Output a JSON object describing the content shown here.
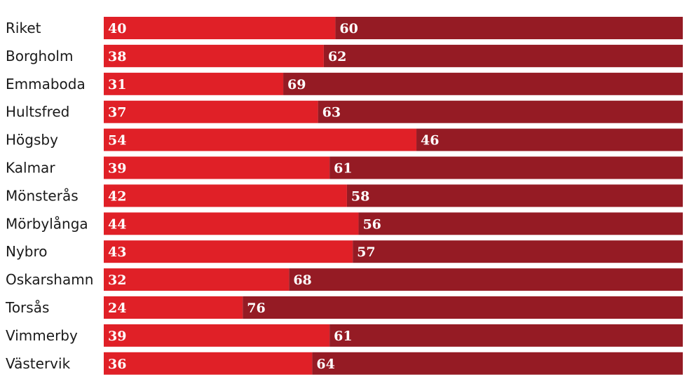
{
  "chart_data": {
    "type": "bar",
    "stacked": true,
    "orientation": "horizontal",
    "categories": [
      "Riket",
      "Borgholm",
      "Emmaboda",
      "Hultsfred",
      "Högsby",
      "Kalmar",
      "Mönsterås",
      "Mörbylånga",
      "Nybro",
      "Oskarshamn",
      "Torsås",
      "Vimmerby",
      "Västervik"
    ],
    "series": [
      {
        "values": [
          40,
          38,
          31,
          37,
          54,
          39,
          42,
          44,
          43,
          32,
          24,
          39,
          36
        ],
        "color": "#e02027"
      },
      {
        "values": [
          60,
          62,
          69,
          63,
          46,
          61,
          58,
          56,
          57,
          68,
          76,
          61,
          64
        ],
        "color": "#951b24"
      }
    ],
    "xlim": [
      0,
      100
    ],
    "grid": false,
    "legend": "none"
  }
}
